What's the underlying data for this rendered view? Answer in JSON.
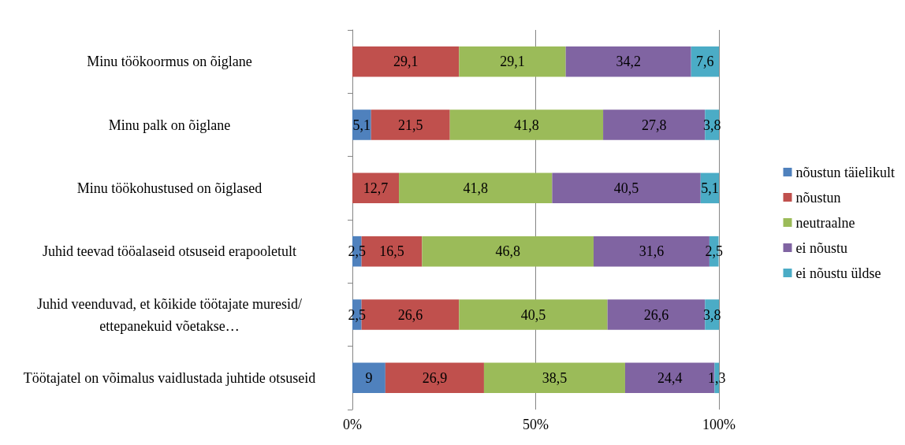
{
  "chart_data": {
    "type": "bar",
    "orientation": "horizontal",
    "stacked": true,
    "categories": [
      "Minu töökoormus on õiglane",
      "Minu palk on õiglane",
      "Minu töökohustused on õiglased",
      "Juhid teevad tööalaseid otsuseid erapooletult",
      "Juhid veenduvad, et kõikide töötajate muresid/ettepanekuid võetakse…",
      "Töötajatel on võimalus vaidlustada juhtide otsuseid"
    ],
    "series": [
      {
        "name": "nõustun täielikult",
        "color": "#4f81bd",
        "values": [
          null,
          5.1,
          null,
          2.5,
          2.5,
          9
        ],
        "value_labels": [
          null,
          "5,1",
          null,
          "2,5",
          "2,5",
          "9"
        ]
      },
      {
        "name": "nõustun",
        "color": "#c0504d",
        "values": [
          29.1,
          21.5,
          12.7,
          16.5,
          26.6,
          26.9
        ],
        "value_labels": [
          "29,1",
          "21,5",
          "12,7",
          "16,5",
          "26,6",
          "26,9"
        ]
      },
      {
        "name": "neutraalne",
        "color": "#9bbb59",
        "values": [
          29.1,
          41.8,
          41.8,
          46.8,
          40.5,
          38.5
        ],
        "value_labels": [
          "29,1",
          "41,8",
          "41,8",
          "46,8",
          "40,5",
          "38,5"
        ]
      },
      {
        "name": "ei nõustu",
        "color": "#8064a2",
        "values": [
          34.2,
          27.8,
          40.5,
          31.6,
          26.6,
          24.4
        ],
        "value_labels": [
          "34,2",
          "27,8",
          "40,5",
          "31,6",
          "26,6",
          "24,4"
        ]
      },
      {
        "name": "ei nõustu üldse",
        "color": "#4bacc6",
        "values": [
          7.6,
          3.8,
          5.1,
          2.5,
          3.8,
          1.3
        ],
        "value_labels": [
          "7,6",
          "3,8",
          "5,1",
          "2,5",
          "3,8",
          "1,3"
        ]
      }
    ],
    "xlim": [
      0,
      100
    ],
    "xticks": [
      {
        "value": 0,
        "label": "0%"
      },
      {
        "value": 50,
        "label": "50%"
      },
      {
        "value": 100,
        "label": "100%"
      }
    ],
    "grid": "x",
    "legend": "right"
  }
}
